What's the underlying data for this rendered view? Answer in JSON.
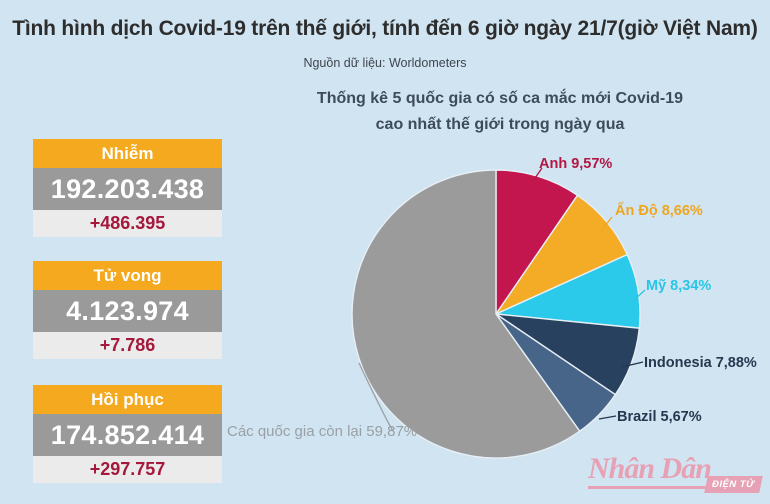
{
  "page": {
    "title": "Tình hình dịch Covid-19 trên thế giới, tính đến 6 giờ ngày 21/7(giờ Việt Nam)",
    "source": "Nguồn dữ liệu: Worldometers"
  },
  "stats": {
    "boxes": [
      {
        "label": "Nhiễm",
        "value": "192.203.438",
        "delta": "+486.395"
      },
      {
        "label": "Tử vong",
        "value": "4.123.974",
        "delta": "+7.786"
      },
      {
        "label": "Hồi phục",
        "value": "174.852.414",
        "delta": "+297.757"
      }
    ]
  },
  "chart_data": {
    "type": "pie",
    "title_line1": "Thống kê 5 quốc gia có số ca mắc  mới Covid-19",
    "title_line2": "cao nhất thế giới trong ngày qua",
    "start_angle_deg": 0,
    "direction": "clockwise",
    "slices": [
      {
        "name": "Anh",
        "value": 9.57,
        "label": "Anh 9,57%",
        "color": "#c3164e",
        "label_color": "#b31743"
      },
      {
        "name": "Ấn Độ",
        "value": 8.66,
        "label": "Ấn Độ 8,66%",
        "color": "#f4ab26",
        "label_color": "#f0a51e"
      },
      {
        "name": "Mỹ",
        "value": 8.34,
        "label": "Mỹ 8,34%",
        "color": "#2bc9ea",
        "label_color": "#29c5e6"
      },
      {
        "name": "Indonesia",
        "value": 7.88,
        "label": "Indonesia 7,88%",
        "color": "#27415e",
        "label_color": "#24384f"
      },
      {
        "name": "Brazil",
        "value": 5.67,
        "label": "Brazil 5,67%",
        "color": "#476489",
        "label_color": "#24384f"
      },
      {
        "name": "Các quốc gia còn lại",
        "value": 59.87,
        "label": "Các quốc gia còn lại 59,87%",
        "color": "#9b9b9b",
        "label_color": "#9aa0a6"
      }
    ]
  },
  "logo": {
    "name": "Nhân Dân",
    "sub": "ĐIỆN TỬ"
  },
  "colors": {
    "background": "#d0e4f1",
    "title_text": "#2d2d2d",
    "heading_text": "#3d4b5a",
    "stat_header_bg": "#f4a91e",
    "stat_value_bg": "#9a9a9a",
    "stat_delta_bg": "#ebebeb",
    "stat_delta_text": "#a5183c",
    "slice_separator": "#e7eff5",
    "logo_pink": "#e7a1b5"
  }
}
